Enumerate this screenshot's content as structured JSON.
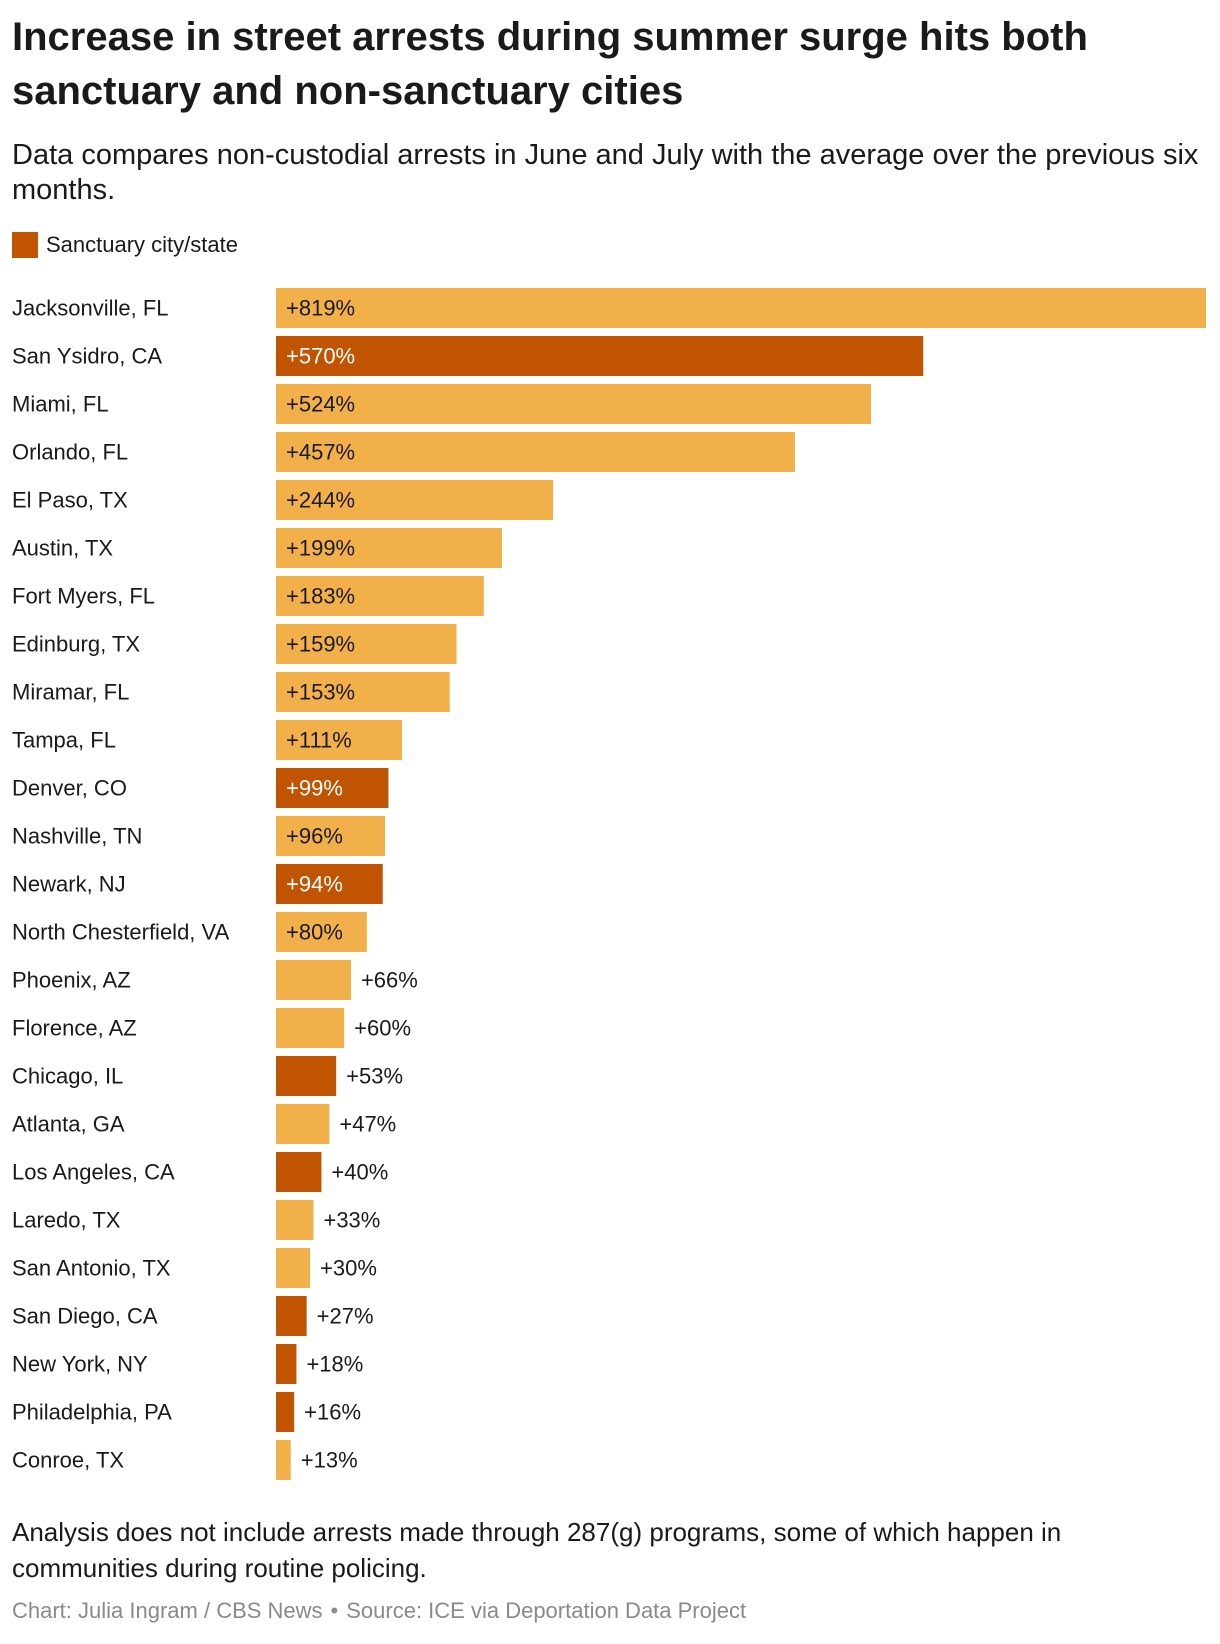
{
  "title": "Increase in street arrests during summer surge hits both sanctuary and non-sanctuary cities",
  "subtitle": "Data compares non-custodial arrests in June and July with the average over the previous six months.",
  "legend": {
    "label": "Sanctuary city/state"
  },
  "colors": {
    "sanctuary": "#c05400",
    "other": "#f2b04a",
    "label_dark": "#1a1a1a",
    "label_light": "#ffffff"
  },
  "note": "Analysis does not include arrests made through 287(g) programs, some of which happen in communities during routine policing.",
  "credit": {
    "chart": "Chart: Julia Ingram / CBS News",
    "separator": "•",
    "source": "Source: ICE via Deportation Data Project"
  },
  "chart_data": {
    "type": "bar",
    "orientation": "horizontal",
    "value_suffix": "%",
    "value_prefix": "+",
    "categories": [
      "Jacksonville, FL",
      "San Ysidro, CA",
      "Miami, FL",
      "Orlando, FL",
      "El Paso, TX",
      "Austin, TX",
      "Fort Myers, FL",
      "Edinburg, TX",
      "Miramar, FL",
      "Tampa, FL",
      "Denver, CO",
      "Nashville, TN",
      "Newark, NJ",
      "North Chesterfield, VA",
      "Phoenix, AZ",
      "Florence, AZ",
      "Chicago, IL",
      "Atlanta, GA",
      "Los Angeles, CA",
      "Laredo, TX",
      "San Antonio, TX",
      "San Diego, CA",
      "New York, NY",
      "Philadelphia, PA",
      "Conroe, TX"
    ],
    "values": [
      819,
      570,
      524,
      457,
      244,
      199,
      183,
      159,
      153,
      111,
      99,
      96,
      94,
      80,
      66,
      60,
      53,
      47,
      40,
      33,
      30,
      27,
      18,
      16,
      13
    ],
    "sanctuary": [
      false,
      true,
      false,
      false,
      false,
      false,
      false,
      false,
      false,
      false,
      true,
      false,
      true,
      false,
      false,
      false,
      true,
      false,
      true,
      false,
      false,
      true,
      true,
      true,
      false
    ],
    "xlim": [
      0,
      819
    ],
    "grid": false,
    "legend_position": "top-left"
  }
}
